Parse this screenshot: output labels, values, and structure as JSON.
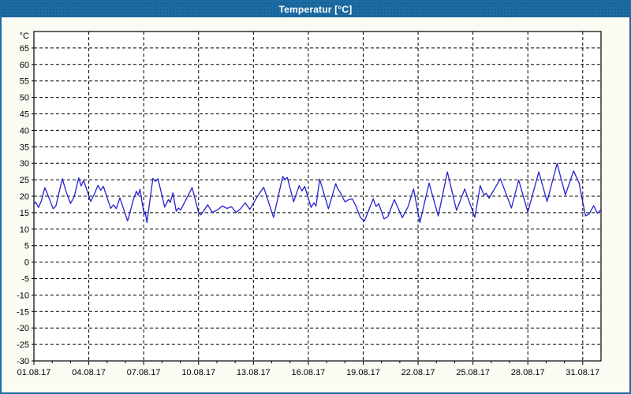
{
  "window": {
    "title": "Temperatur [°C]",
    "title_bar_color": "#1d6ba3",
    "title_bar_dot_color": "#155f90",
    "border_color": "#1d6ba3",
    "margin_background": "#fbfbf4",
    "plot_background": "#ffffff"
  },
  "chart_data": {
    "type": "line",
    "title": "Temperatur [°C]",
    "ylabel": "°C",
    "xlabel": "",
    "grid": "dashed",
    "grid_color": "#000000",
    "line_color": "#2323cd",
    "ylim": [
      -30,
      70
    ],
    "xlim_days": [
      0,
      31
    ],
    "y_ticks": [
      65,
      60,
      55,
      50,
      45,
      40,
      35,
      30,
      25,
      20,
      15,
      10,
      5,
      0,
      -5,
      -10,
      -15,
      -20,
      -25,
      -30
    ],
    "x_tick_days": [
      0,
      3,
      6,
      9,
      12,
      15,
      18,
      21,
      24,
      27,
      30
    ],
    "x_tick_labels": [
      "01.08.17",
      "04.08.17",
      "07.08.17",
      "10.08.17",
      "13.08.17",
      "16.08.17",
      "19.08.17",
      "22.08.17",
      "25.08.17",
      "28.08.17",
      "31.08.17"
    ],
    "x_minor_tick_step_days": 1,
    "series": [
      {
        "name": "Temperatur",
        "x_days": [
          0.0,
          0.1,
          0.25,
          0.4,
          0.6,
          0.8,
          1.05,
          1.2,
          1.55,
          1.78,
          2.0,
          2.2,
          2.45,
          2.58,
          2.72,
          3.1,
          3.3,
          3.5,
          3.65,
          3.8,
          4.2,
          4.35,
          4.5,
          4.7,
          5.12,
          5.45,
          5.6,
          5.7,
          5.8,
          6.02,
          6.08,
          6.18,
          6.5,
          6.65,
          6.78,
          7.15,
          7.35,
          7.45,
          7.6,
          7.78,
          7.9,
          8.02,
          8.65,
          9.0,
          9.13,
          9.5,
          9.75,
          10.0,
          10.3,
          10.55,
          10.8,
          11.05,
          11.3,
          11.55,
          11.8,
          12.2,
          12.56,
          13.1,
          13.6,
          13.73,
          13.85,
          14.2,
          14.5,
          14.65,
          14.8,
          15.15,
          15.3,
          15.42,
          15.62,
          16.1,
          16.5,
          16.6,
          16.72,
          17.0,
          17.2,
          17.4,
          17.6,
          17.85,
          18.07,
          18.55,
          18.7,
          18.85,
          19.14,
          19.35,
          19.7,
          20.14,
          20.45,
          20.75,
          21.1,
          21.6,
          22.1,
          22.6,
          23.1,
          23.55,
          24.1,
          24.4,
          24.6,
          24.72,
          24.88,
          25.5,
          26.1,
          26.5,
          27.0,
          27.6,
          28.05,
          28.6,
          29.05,
          29.5,
          29.8,
          30.15,
          30.35,
          30.6,
          30.8,
          31.0
        ],
        "values": [
          17.6,
          18.2,
          16.6,
          18.5,
          22.6,
          19.8,
          16.2,
          17.0,
          25.3,
          21.0,
          17.8,
          19.8,
          25.6,
          23.1,
          24.8,
          18.4,
          20.6,
          23.3,
          21.8,
          23.0,
          16.3,
          17.4,
          16.2,
          19.5,
          12.5,
          19.2,
          21.5,
          20.3,
          22.1,
          14.4,
          15.3,
          12.0,
          25.4,
          24.5,
          25.3,
          16.7,
          19.0,
          18.1,
          21.0,
          15.4,
          16.4,
          15.8,
          22.6,
          15.1,
          14.3,
          17.4,
          15.1,
          15.7,
          17.0,
          16.3,
          16.8,
          15.1,
          16.2,
          18.0,
          16.0,
          19.8,
          22.7,
          13.6,
          26.0,
          25.1,
          25.7,
          18.3,
          23.2,
          21.6,
          23.0,
          16.6,
          18.0,
          17.0,
          25.2,
          16.2,
          23.8,
          22.3,
          21.4,
          18.3,
          18.9,
          19.2,
          17.0,
          13.5,
          12.5,
          19.2,
          16.9,
          17.7,
          13.1,
          13.8,
          19.0,
          13.5,
          16.8,
          22.2,
          12.0,
          24.0,
          14.0,
          27.4,
          15.7,
          22.2,
          13.6,
          23.2,
          20.3,
          20.9,
          19.4,
          25.3,
          16.4,
          24.9,
          15.2,
          27.4,
          18.4,
          29.9,
          20.4,
          27.7,
          24.0,
          14.0,
          14.6,
          17.1,
          14.8,
          16.0
        ]
      }
    ]
  }
}
